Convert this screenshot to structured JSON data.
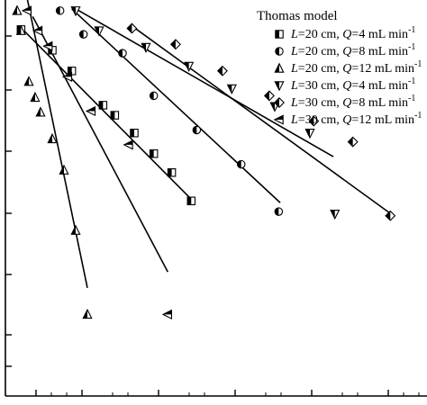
{
  "chart_data": {
    "type": "scatter",
    "title": "",
    "xlabel": "",
    "ylabel": "",
    "xlim": [
      0,
      540
    ],
    "ylim": [
      -5.8,
      0.9
    ],
    "grid": false,
    "legend_title": "Thomas model",
    "legend_position": "top-right",
    "series": [
      {
        "name": "L=20 cm, Q=4 mL min-1",
        "legend": {
          "L": "L",
          "l_val": "=20 cm, ",
          "Q": "Q",
          "q_val": "=4 mL min",
          "sup": "-1"
        },
        "marker": "square",
        "x": [
          20,
          60,
          85,
          125,
          140,
          165,
          190,
          213,
          238
        ],
        "y": [
          0.4,
          0.05,
          -0.3,
          -0.88,
          -1.05,
          -1.35,
          -1.7,
          -2.02,
          -2.5
        ],
        "fit": {
          "x": [
            20,
            238
          ],
          "y": [
            0.43,
            -2.47
          ]
        }
      },
      {
        "name": "L=20 cm, Q=8 mL min-1",
        "legend": {
          "L": "L",
          "l_val": "=20 cm, ",
          "Q": "Q",
          "q_val": "=8 mL min",
          "sup": "-1"
        },
        "marker": "circle",
        "x": [
          70,
          100,
          150,
          190,
          245,
          302,
          350
        ],
        "y": [
          0.72,
          0.32,
          0.0,
          -0.72,
          -1.3,
          -1.88,
          -2.68
        ],
        "fit": {
          "x": [
            85,
            352
          ],
          "y": [
            0.75,
            -2.53
          ]
        }
      },
      {
        "name": "L=20 cm, Q=12 mL min-1",
        "legend": {
          "L": "L",
          "l_val": "=20 cm, ",
          "Q": "Q",
          "q_val": "=12 mL min",
          "sup": "-1"
        },
        "marker": "triangle-up",
        "x": [
          15,
          20,
          30,
          38,
          45,
          60,
          75,
          90,
          105
        ],
        "y": [
          0.72,
          0.38,
          -0.48,
          -0.75,
          -1.0,
          -1.45,
          -1.98,
          -3.0,
          -4.42
        ],
        "fit": {
          "x": [
            28,
            105
          ],
          "y": [
            0.92,
            -3.97
          ]
        }
      },
      {
        "name": "L=30 cm, Q=4 mL min-1",
        "legend": {
          "L": "L",
          "l_val": "=30 cm, ",
          "Q": "Q",
          "q_val": "=4 mL min",
          "sup": "-1"
        },
        "marker": "triangle-down",
        "x": [
          90,
          120,
          180,
          235,
          290,
          345,
          390,
          422
        ],
        "y": [
          0.72,
          0.38,
          0.1,
          -0.22,
          -0.6,
          -0.9,
          -1.35,
          -2.72
        ],
        "fit": {
          "x": [
            90,
            420
          ],
          "y": [
            0.75,
            -1.75
          ]
        }
      },
      {
        "name": "L=30 cm, Q=8 mL min-1",
        "legend": {
          "L": "L",
          "l_val": "=30 cm, ",
          "Q": "Q",
          "q_val": "=8 mL min",
          "sup": "-1"
        },
        "marker": "diamond",
        "x": [
          162,
          218,
          278,
          338,
          395,
          445,
          493
        ],
        "y": [
          0.42,
          0.15,
          -0.3,
          -0.72,
          -1.15,
          -1.5,
          -2.75
        ],
        "fit": {
          "x": [
            160,
            495
          ],
          "y": [
            0.48,
            -2.73
          ]
        }
      },
      {
        "name": "L=30 cm, Q=12 mL min-1",
        "legend": {
          "L": "L",
          "l_val": "=30 cm, ",
          "Q": "Q",
          "q_val": "=12 mL min",
          "sup": "-1"
        },
        "marker": "triangle-left",
        "x": [
          28,
          42,
          55,
          80,
          110,
          158,
          208
        ],
        "y": [
          0.72,
          0.38,
          0.12,
          -0.4,
          -0.98,
          -1.55,
          -4.42
        ],
        "fit": {
          "x": [
            35,
            208
          ],
          "y": [
            0.62,
            -3.7
          ]
        }
      }
    ]
  }
}
